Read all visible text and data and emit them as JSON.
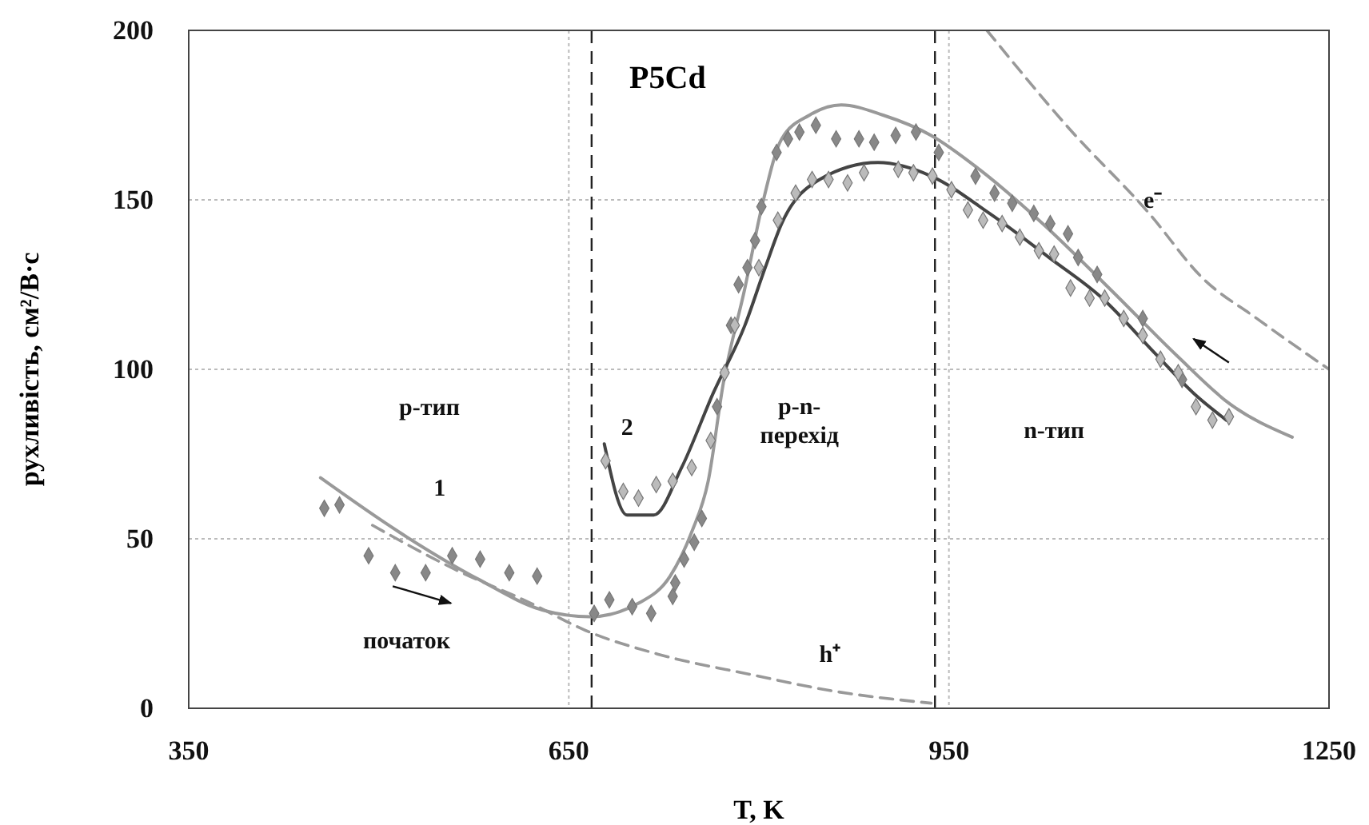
{
  "chart_data": {
    "type": "line",
    "title": "P5Cd",
    "xlabel": "T, K",
    "ylabel": "рухливість, см²/В·с",
    "xlim": [
      350,
      1250
    ],
    "xticks": [
      350,
      650,
      950,
      1250
    ],
    "ylim": [
      0,
      200
    ],
    "yticks": [
      0,
      50,
      100,
      150,
      200
    ],
    "grid": true,
    "series": [
      {
        "color": "#999999",
        "marker": "none",
        "line_style": "solid",
        "x": [
          454,
          516,
          579,
          629,
          667,
          705,
          730,
          747,
          760,
          772,
          789,
          803,
          818,
          840,
          865,
          898,
          936,
          974,
          1024,
          1079,
          1130,
          1171,
          1221
        ],
        "values": [
          68,
          52,
          38,
          29,
          27,
          31,
          39,
          52,
          67,
          96,
          124,
          149,
          168,
          175,
          178,
          175,
          169,
          159,
          143,
          123,
          104,
          90,
          80
        ]
      },
      {
        "color": "#444444",
        "marker": "none",
        "line_style": "solid",
        "x": [
          678,
          696,
          717,
          739,
          764,
          789,
          805,
          818,
          848,
          894,
          936,
          982,
          1029,
          1071,
          1112,
          1143,
          1169
        ],
        "values": [
          78,
          57,
          57,
          71,
          93,
          113,
          130,
          143,
          156,
          161,
          157,
          146,
          133,
          121,
          105,
          93,
          85
        ]
      },
      {
        "color": "#999999",
        "marker": "none",
        "line_style": "dashed",
        "x": [
          495,
          560,
          620,
          663,
          720,
          793,
          860,
          936
        ],
        "values": [
          54,
          41,
          31,
          23,
          16,
          10,
          5,
          1.5
        ]
      },
      {
        "color": "#999999",
        "marker": "none",
        "line_style": "dashed",
        "x": [
          980,
          1045,
          1108,
          1150,
          1193,
          1250
        ],
        "values": [
          200,
          171,
          146,
          127,
          115,
          100
        ]
      },
      {
        "type": "scatter",
        "color": "#888888",
        "marker": "diamond",
        "x": [
          457,
          469,
          492,
          513,
          537,
          558,
          580,
          603,
          625,
          670,
          682,
          700,
          715,
          732,
          734,
          741,
          749,
          755,
          767,
          778,
          784,
          791,
          797,
          802,
          814,
          823,
          832,
          845,
          861,
          879,
          891,
          908,
          924,
          942,
          971,
          986,
          1000,
          1017,
          1030,
          1044,
          1052,
          1067,
          1103,
          1134
        ],
        "values": [
          59,
          60,
          45,
          40,
          40,
          45,
          44,
          40,
          39,
          28,
          32,
          30,
          28,
          33,
          37,
          44,
          49,
          56,
          89,
          113,
          125,
          130,
          138,
          148,
          164,
          168,
          170,
          172,
          168,
          168,
          167,
          169,
          170,
          164,
          157,
          152,
          149,
          146,
          143,
          140,
          133,
          128,
          115,
          97
        ]
      },
      {
        "type": "scatter",
        "color": "#bbbbbb",
        "marker": "diamond",
        "x": [
          679,
          693,
          705,
          719,
          732,
          747,
          762,
          773,
          781,
          800,
          815,
          829,
          842,
          855,
          870,
          883,
          910,
          922,
          937,
          952,
          965,
          977,
          992,
          1006,
          1021,
          1033,
          1046,
          1061,
          1073,
          1088,
          1103,
          1117,
          1131,
          1145,
          1158,
          1171
        ],
        "values": [
          73,
          64,
          62,
          66,
          67,
          71,
          79,
          99,
          113,
          130,
          144,
          152,
          156,
          156,
          155,
          158,
          159,
          158,
          157,
          153,
          147,
          144,
          143,
          139,
          135,
          134,
          124,
          121,
          121,
          115,
          110,
          103,
          99,
          89,
          85,
          86
        ]
      }
    ],
    "ref_lines": [
      {
        "axis": "x",
        "value": 668,
        "color": "#222222",
        "line_style": "dashed"
      },
      {
        "axis": "x",
        "value": 939,
        "color": "#222222",
        "line_style": "dashed"
      }
    ],
    "annotations": [
      "p-тип",
      "p-n-\nперехід",
      "n-тип",
      "початок",
      "1",
      "2",
      "e⁻",
      "h⁺"
    ]
  }
}
